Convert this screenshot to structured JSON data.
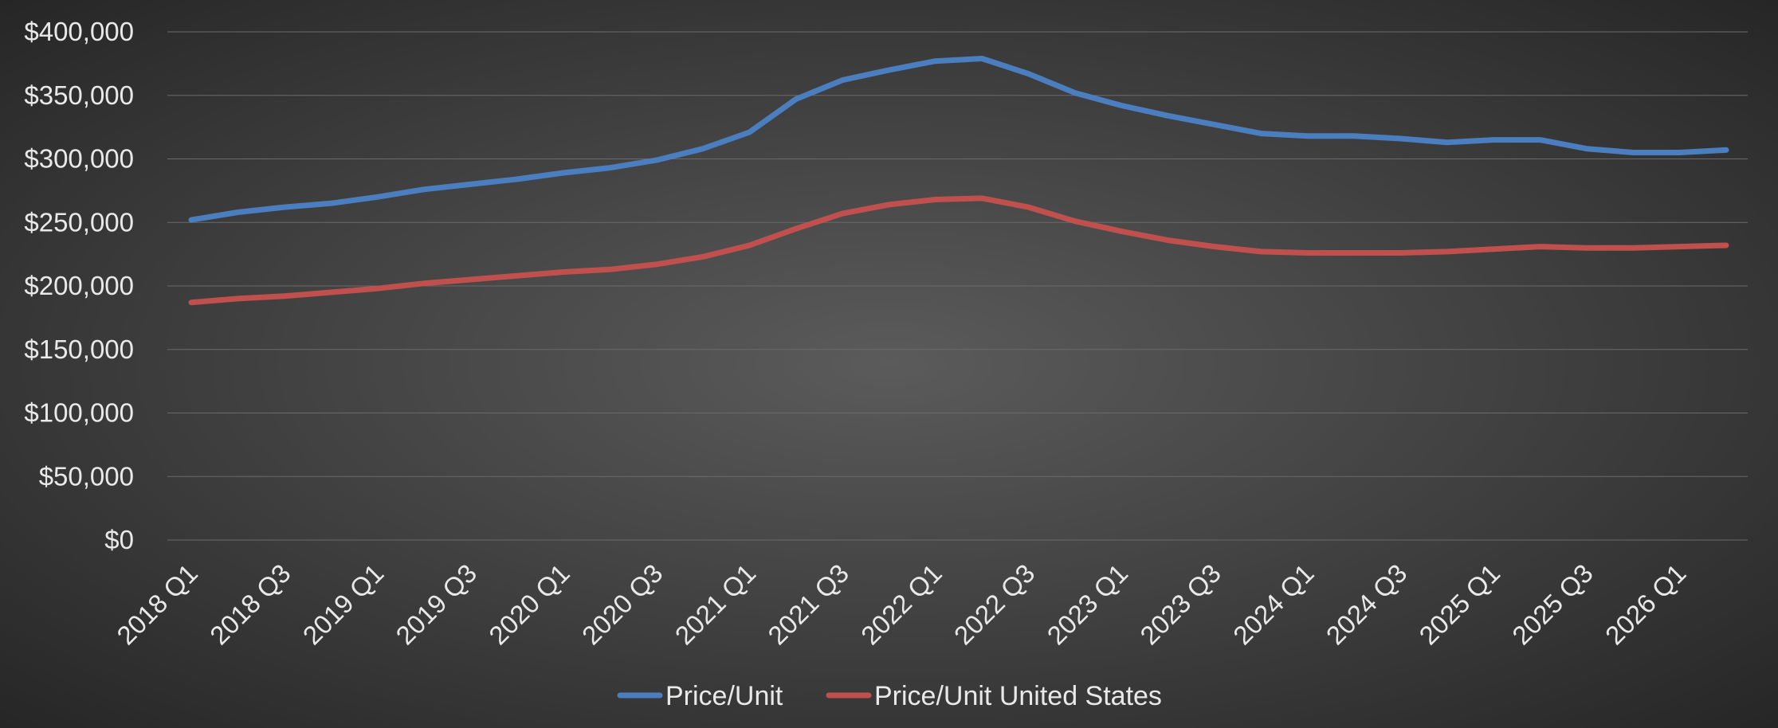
{
  "chart_data": {
    "type": "line",
    "title": "",
    "xlabel": "",
    "ylabel": "",
    "ylim": [
      0,
      400000
    ],
    "yticks": [
      {
        "value": 0,
        "label": "$0"
      },
      {
        "value": 50000,
        "label": "$50,000"
      },
      {
        "value": 100000,
        "label": "$100,000"
      },
      {
        "value": 150000,
        "label": "$150,000"
      },
      {
        "value": 200000,
        "label": "$200,000"
      },
      {
        "value": 250000,
        "label": "$250,000"
      },
      {
        "value": 300000,
        "label": "$300,000"
      },
      {
        "value": 350000,
        "label": "$350,000"
      },
      {
        "value": 400000,
        "label": "$400,000"
      }
    ],
    "grid": true,
    "legend_position": "bottom",
    "categories": [
      "2018 Q1",
      "2018 Q2",
      "2018 Q3",
      "2018 Q4",
      "2019 Q1",
      "2019 Q2",
      "2019 Q3",
      "2019 Q4",
      "2020 Q1",
      "2020 Q2",
      "2020 Q3",
      "2020 Q4",
      "2021 Q1",
      "2021 Q2",
      "2021 Q3",
      "2021 Q4",
      "2022 Q1",
      "2022 Q2",
      "2022 Q3",
      "2022 Q4",
      "2023 Q1",
      "2023 Q2",
      "2023 Q3",
      "2023 Q4",
      "2024 Q1",
      "2024 Q2",
      "2024 Q3",
      "2024 Q4",
      "2025 Q1",
      "2025 Q2",
      "2025 Q3",
      "2025 Q4",
      "2026 Q1",
      "2026 Q2"
    ],
    "tick_labels_shown": [
      "2018 Q1",
      "2018 Q3",
      "2019 Q1",
      "2019 Q3",
      "2020 Q1",
      "2020 Q3",
      "2021 Q1",
      "2021 Q3",
      "2022 Q1",
      "2022 Q3",
      "2023 Q1",
      "2023 Q3",
      "2024 Q1",
      "2024 Q3",
      "2025 Q1",
      "2025 Q3",
      "2026 Q1"
    ],
    "series": [
      {
        "name": "Price/Unit",
        "color": "#4a7ebf",
        "values": [
          252000,
          258000,
          262000,
          265000,
          270000,
          276000,
          280000,
          284000,
          289000,
          293000,
          299000,
          308000,
          321000,
          347000,
          362000,
          370000,
          377000,
          379000,
          367000,
          352000,
          342000,
          334000,
          327000,
          320000,
          318000,
          318000,
          316000,
          313000,
          315000,
          315000,
          308000,
          305000,
          305000,
          307000
        ]
      },
      {
        "name": "Price/Unit United States",
        "color": "#c0504d",
        "values": [
          187000,
          190000,
          192000,
          195000,
          198000,
          202000,
          205000,
          208000,
          211000,
          213000,
          217000,
          223000,
          232000,
          245000,
          257000,
          264000,
          268000,
          269000,
          262000,
          251000,
          243000,
          236000,
          231000,
          227000,
          226000,
          226000,
          226000,
          227000,
          229000,
          231000,
          230000,
          230000,
          231000,
          232000
        ]
      }
    ]
  }
}
